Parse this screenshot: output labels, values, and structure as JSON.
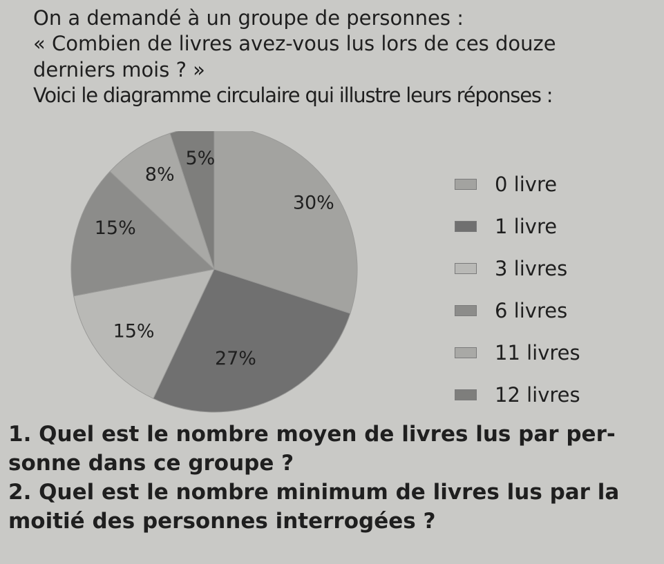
{
  "intro": {
    "line1": "On a demandé à un groupe de personnes :",
    "line2": "« Combien de livres avez-vous lus lors de ces douze",
    "line3": "derniers mois ? »",
    "line4": "Voici le diagramme circulaire qui illustre leurs réponses :"
  },
  "chart_data": {
    "type": "pie",
    "title": "",
    "categories": [
      "0 livre",
      "1 livre",
      "3 livres",
      "6 livres",
      "11 livres",
      "12 livres"
    ],
    "values": [
      30,
      27,
      15,
      15,
      8,
      5
    ],
    "labels": [
      "30%",
      "27%",
      "15%",
      "15%",
      "8%",
      "5%"
    ],
    "colors": [
      "#a3a3a0",
      "#707070",
      "#b9b9b6",
      "#8c8c8a",
      "#a9a9a6",
      "#7e7e7c"
    ],
    "legend_placement": "right"
  },
  "legend": {
    "items": [
      {
        "label": "0 livre",
        "color": "#a3a3a0"
      },
      {
        "label": "1 livre",
        "color": "#707070"
      },
      {
        "label": "3 livres",
        "color": "#b9b9b6"
      },
      {
        "label": "6 livres",
        "color": "#8c8c8a"
      },
      {
        "label": "11 livres",
        "color": "#a9a9a6"
      },
      {
        "label": "12 livres",
        "color": "#7e7e7c"
      }
    ]
  },
  "questions": {
    "q1_num": "1.",
    "q1_line1": "Quel est le nombre moyen de livres lus par per-",
    "q1_line2": "sonne dans ce groupe ?",
    "q2_num": "2.",
    "q2_line1": "Quel est le nombre minimum de livres lus par la",
    "q2_line2": "moitié des personnes interrogées ?"
  }
}
